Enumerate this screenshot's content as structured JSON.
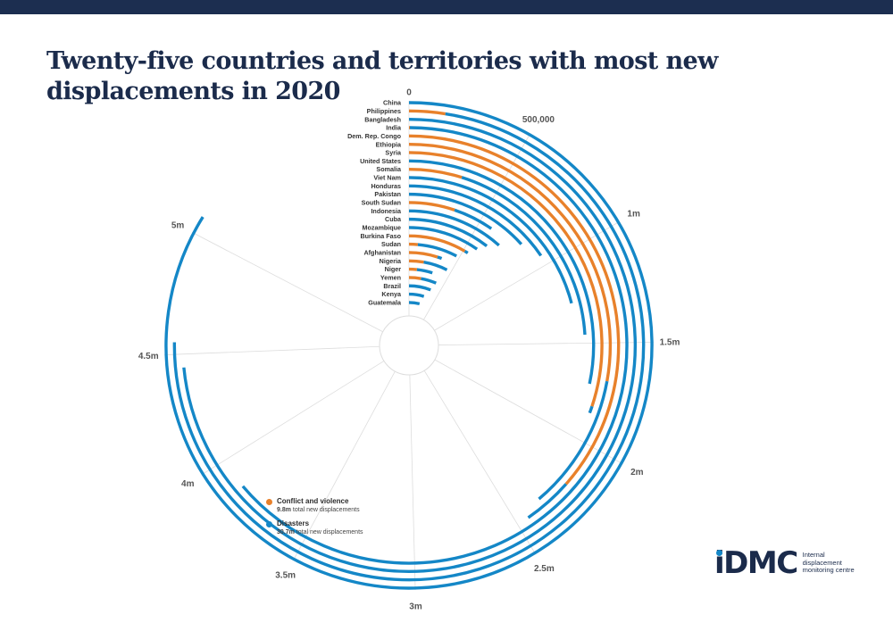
{
  "colors": {
    "header_bar": "#1c2e50",
    "conflict": "#e8812b",
    "disasters": "#1487c7",
    "grid": "#dddddd",
    "text": "#2b2b2b"
  },
  "title": "Twenty-five countries and territories with most new displacements in 2020",
  "legend": {
    "conflict": {
      "label": "Conflict and violence",
      "total": "9.8m",
      "suffix": "total new displacements"
    },
    "disasters": {
      "label": "Disasters",
      "total": "30.7m",
      "suffix": "total new displacements"
    }
  },
  "logo": {
    "mark": "iDMC",
    "text": "Internal displacement monitoring centre"
  },
  "chart_data": {
    "type": "radial-bar",
    "stacked": true,
    "scale_max": 5500000,
    "ticks": [
      {
        "value": 0,
        "label": "0"
      },
      {
        "value": 500000,
        "label": "500,000"
      },
      {
        "value": 1000000,
        "label": "1m"
      },
      {
        "value": 1500000,
        "label": "1.5m"
      },
      {
        "value": 2000000,
        "label": "2m"
      },
      {
        "value": 2500000,
        "label": "2.5m"
      },
      {
        "value": 3000000,
        "label": "3m"
      },
      {
        "value": 3500000,
        "label": "3.5m"
      },
      {
        "value": 4000000,
        "label": "4m"
      },
      {
        "value": 4500000,
        "label": "4.5m"
      },
      {
        "value": 5000000,
        "label": "5m"
      }
    ],
    "series": [
      {
        "name": "Conflict and violence",
        "key": "conflict"
      },
      {
        "name": "Disasters",
        "key": "disasters"
      }
    ],
    "countries": [
      {
        "name": "China",
        "conflict": 0,
        "disasters": 5074000
      },
      {
        "name": "Philippines",
        "conflict": 150000,
        "disasters": 4400000
      },
      {
        "name": "Bangladesh",
        "conflict": 0,
        "disasters": 4443000
      },
      {
        "name": "India",
        "conflict": 3900,
        "disasters": 3856000
      },
      {
        "name": "Dem. Rep. Congo",
        "conflict": 2209000,
        "disasters": 233000
      },
      {
        "name": "Ethiopia",
        "conflict": 1685000,
        "disasters": 664000
      },
      {
        "name": "Syria",
        "conflict": 1822000,
        "disasters": 35000
      },
      {
        "name": "United States",
        "conflict": 0,
        "disasters": 1714000
      },
      {
        "name": "Somalia",
        "conflict": 293000,
        "disasters": 1161000
      },
      {
        "name": "Viet Nam",
        "conflict": 0,
        "disasters": 1268000
      },
      {
        "name": "Honduras",
        "conflict": 0,
        "disasters": 937000
      },
      {
        "name": "Pakistan",
        "conflict": 0,
        "disasters": 806000
      },
      {
        "name": "South Sudan",
        "conflict": 313000,
        "disasters": 278000
      },
      {
        "name": "Indonesia",
        "conflict": 0,
        "disasters": 705000
      },
      {
        "name": "Cuba",
        "conflict": 0,
        "disasters": 639000
      },
      {
        "name": "Mozambique",
        "conflict": 0,
        "disasters": 592000
      },
      {
        "name": "Burkina Faso",
        "conflict": 515000,
        "disasters": 30000
      },
      {
        "name": "Sudan",
        "conflict": 84000,
        "disasters": 386000
      },
      {
        "name": "Afghanistan",
        "conflict": 300000,
        "disasters": 46000
      },
      {
        "name": "Nigeria",
        "conflict": 169000,
        "disasters": 279000
      },
      {
        "name": "Niger",
        "conflict": 100000,
        "disasters": 200000
      },
      {
        "name": "Yemen",
        "conflict": 172000,
        "disasters": 223000
      },
      {
        "name": "Brazil",
        "conflict": 0,
        "disasters": 358000
      },
      {
        "name": "Kenya",
        "conflict": 0,
        "disasters": 284000
      },
      {
        "name": "Guatemala",
        "conflict": 0,
        "disasters": 239000
      }
    ]
  }
}
